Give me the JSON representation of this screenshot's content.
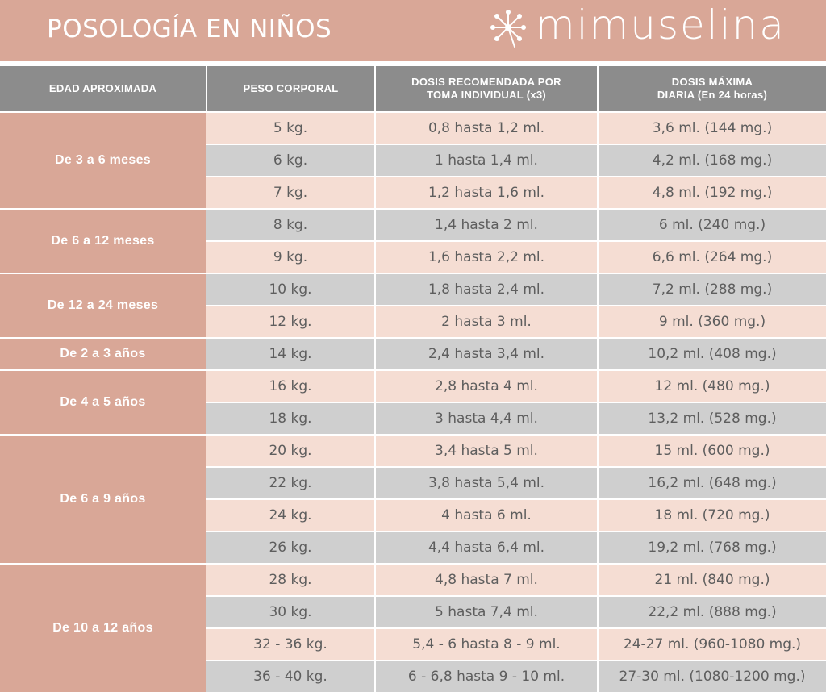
{
  "title": "POSOLOGÍA EN NIÑOS",
  "brand": {
    "name": "mimuselina",
    "icon": "dandelion-icon"
  },
  "headers": [
    "EDAD APROXIMADA",
    "PESO CORPORAL",
    "DOSIS RECOMENDADA POR TOMA INDIVIDUAL (x3)",
    "DOSIS MÁXIMA DIARIA (En 24 horas)"
  ],
  "groups": [
    {
      "label": "De 3 a 6 meses",
      "rows": [
        [
          "5 kg.",
          "0,8 hasta 1,2 ml.",
          "3,6 ml. (144 mg.)"
        ],
        [
          "6 kg.",
          "1 hasta 1,4 ml.",
          "4,2 ml. (168 mg.)"
        ],
        [
          "7 kg.",
          "1,2 hasta 1,6 ml.",
          "4,8 ml. (192 mg.)"
        ]
      ]
    },
    {
      "label": "De 6 a 12 meses",
      "rows": [
        [
          "8 kg.",
          "1,4 hasta 2 ml.",
          "6 ml. (240 mg.)"
        ],
        [
          "9 kg.",
          "1,6 hasta 2,2 ml.",
          "6,6 ml. (264 mg.)"
        ]
      ]
    },
    {
      "label": "De 12 a 24 meses",
      "rows": [
        [
          "10 kg.",
          "1,8 hasta 2,4 ml.",
          "7,2 ml. (288 mg.)"
        ],
        [
          "12 kg.",
          "2 hasta 3 ml.",
          "9 ml. (360 mg.)"
        ]
      ]
    },
    {
      "label": "De 2 a 3 años",
      "rows": [
        [
          "14 kg.",
          "2,4 hasta 3,4 ml.",
          "10,2 ml. (408 mg.)"
        ]
      ]
    },
    {
      "label": "De 4 a 5 años",
      "rows": [
        [
          "16 kg.",
          "2,8 hasta 4 ml.",
          "12 ml. (480 mg.)"
        ],
        [
          "18 kg.",
          "3 hasta 4,4 ml.",
          "13,2 ml. (528 mg.)"
        ]
      ]
    },
    {
      "label": "De 6 a 9 años",
      "rows": [
        [
          "20 kg.",
          "3,4 hasta 5 ml.",
          "15 ml. (600 mg.)"
        ],
        [
          "22 kg.",
          "3,8 hasta 5,4 ml.",
          "16,2 ml. (648 mg.)"
        ],
        [
          "24 kg.",
          "4 hasta 6 ml.",
          "18 ml. (720 mg.)"
        ],
        [
          "26 kg.",
          "4,4 hasta 6,4 ml.",
          "19,2 ml. (768 mg.)"
        ]
      ]
    },
    {
      "label": "De 10 a 12 años",
      "rows": [
        [
          "28 kg.",
          "4,8 hasta 7 ml.",
          "21 ml. (840 mg.)"
        ],
        [
          "30 kg.",
          "5 hasta 7,4 ml.",
          "22,2 ml. (888 mg.)"
        ],
        [
          "32 - 36 kg.",
          "5,4 - 6 hasta 8 - 9  ml.",
          "24-27 ml. (960-1080 mg.)"
        ],
        [
          "36 - 40 kg.",
          "6 - 6,8 hasta 9 - 10  ml.",
          "27-30 ml. (1080-1200 mg.)"
        ]
      ]
    }
  ],
  "colors": {
    "brand_rose": "#d9a797",
    "header_gray": "#8c8c8c",
    "row_peach": "#f5ddd3",
    "row_gray": "#cfcfcf",
    "text_gray": "#5e5e5e"
  }
}
